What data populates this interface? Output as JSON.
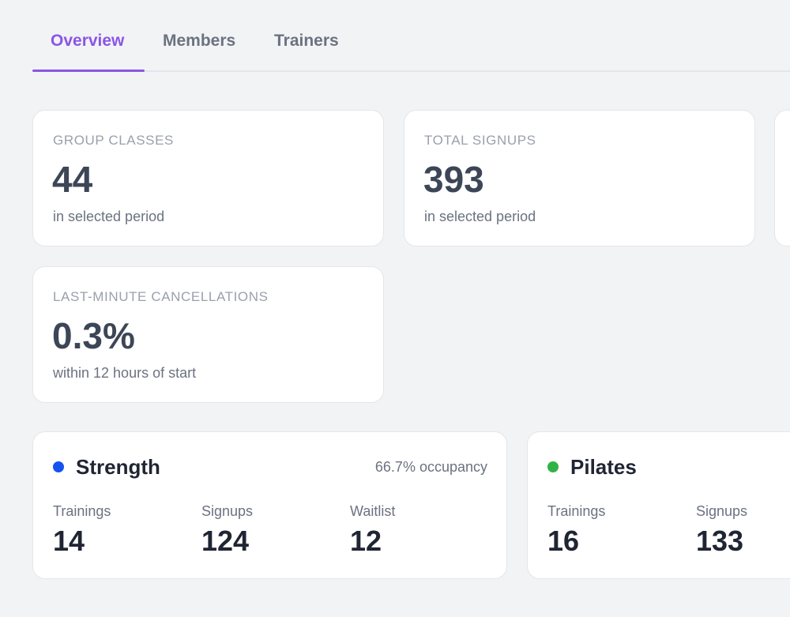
{
  "tabs": [
    {
      "label": "Overview",
      "active": true
    },
    {
      "label": "Members",
      "active": false
    },
    {
      "label": "Trainers",
      "active": false
    }
  ],
  "stats": [
    {
      "label": "GROUP CLASSES",
      "value": "44",
      "caption": "in selected period"
    },
    {
      "label": "TOTAL SIGNUPS",
      "value": "393",
      "caption": "in selected period"
    },
    {
      "label": "LAST-MINUTE CANCELLATIONS",
      "value": "0.3%",
      "caption": "within 12 hours of start"
    }
  ],
  "categories": [
    {
      "name": "Strength",
      "color": "#1652f0",
      "occupancy": "66.7% occupancy",
      "metrics": [
        {
          "label": "Trainings",
          "value": "14"
        },
        {
          "label": "Signups",
          "value": "124"
        },
        {
          "label": "Waitlist",
          "value": "12"
        }
      ]
    },
    {
      "name": "Pilates",
      "color": "#2fb344",
      "metrics": [
        {
          "label": "Trainings",
          "value": "16"
        },
        {
          "label": "Signups",
          "value": "133"
        }
      ]
    }
  ]
}
